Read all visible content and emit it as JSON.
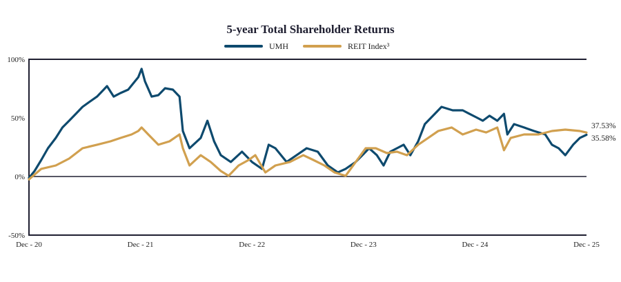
{
  "chart_data": {
    "type": "line",
    "title": "5-year Total Shareholder Returns",
    "xlabel": "",
    "ylabel": "",
    "x_unit": "years since Dec-20",
    "xlim": [
      0,
      5
    ],
    "ylim": [
      -50,
      100
    ],
    "y_ticks": [
      {
        "value": 100,
        "label": "100%"
      },
      {
        "value": 50,
        "label": "50%"
      },
      {
        "value": 0,
        "label": "0%"
      },
      {
        "value": -50,
        "label": "-50%"
      }
    ],
    "x_ticks": [
      {
        "value": 0,
        "label": "Dec - 20"
      },
      {
        "value": 1,
        "label": "Dec - 21"
      },
      {
        "value": 2,
        "label": "Dec - 22"
      },
      {
        "value": 3,
        "label": "Dec - 23"
      },
      {
        "value": 4,
        "label": "Dec - 24"
      },
      {
        "value": 5,
        "label": "Dec - 25"
      }
    ],
    "grid": false,
    "legend_position": "top-center",
    "series": [
      {
        "name": "UMH",
        "color": "#0e4a6e",
        "end_label": "35.58%",
        "points": [
          [
            0,
            -1.2
          ],
          [
            0.05,
            4.7
          ],
          [
            0.11,
            14.1
          ],
          [
            0.17,
            24.1
          ],
          [
            0.24,
            32.9
          ],
          [
            0.3,
            41.8
          ],
          [
            0.36,
            47.6
          ],
          [
            0.42,
            53.5
          ],
          [
            0.48,
            59.4
          ],
          [
            0.54,
            63.5
          ],
          [
            0.61,
            68.2
          ],
          [
            0.67,
            74.1
          ],
          [
            0.7,
            77.1
          ],
          [
            0.76,
            68.2
          ],
          [
            0.82,
            71.2
          ],
          [
            0.89,
            74.1
          ],
          [
            0.95,
            81.2
          ],
          [
            0.98,
            84.7
          ],
          [
            1.01,
            91.8
          ],
          [
            1.04,
            81.2
          ],
          [
            1.1,
            68.2
          ],
          [
            1.16,
            69.4
          ],
          [
            1.22,
            75.3
          ],
          [
            1.29,
            74.1
          ],
          [
            1.35,
            68.2
          ],
          [
            1.38,
            38.8
          ],
          [
            1.44,
            24.1
          ],
          [
            1.54,
            32.9
          ],
          [
            1.6,
            47.6
          ],
          [
            1.66,
            30
          ],
          [
            1.72,
            18.2
          ],
          [
            1.81,
            12.4
          ],
          [
            1.91,
            21.2
          ],
          [
            2.0,
            12.4
          ],
          [
            2.09,
            6.5
          ],
          [
            2.15,
            27.1
          ],
          [
            2.21,
            24.1
          ],
          [
            2.31,
            12.4
          ],
          [
            2.4,
            18.2
          ],
          [
            2.49,
            24.1
          ],
          [
            2.59,
            21.2
          ],
          [
            2.68,
            9.4
          ],
          [
            2.77,
            3.5
          ],
          [
            2.84,
            6.5
          ],
          [
            2.93,
            12.4
          ],
          [
            2.99,
            18.2
          ],
          [
            3.05,
            24.1
          ],
          [
            3.12,
            18.2
          ],
          [
            3.18,
            9.4
          ],
          [
            3.24,
            21.2
          ],
          [
            3.3,
            24.1
          ],
          [
            3.36,
            27.1
          ],
          [
            3.42,
            18.2
          ],
          [
            3.49,
            30
          ],
          [
            3.55,
            44.7
          ],
          [
            3.61,
            50.6
          ],
          [
            3.7,
            59.4
          ],
          [
            3.8,
            56.5
          ],
          [
            3.89,
            56.5
          ],
          [
            3.95,
            53.5
          ],
          [
            4.01,
            50.6
          ],
          [
            4.07,
            47.6
          ],
          [
            4.13,
            51.8
          ],
          [
            4.2,
            47.6
          ],
          [
            4.26,
            53.5
          ],
          [
            4.29,
            35.9
          ],
          [
            4.35,
            44.7
          ],
          [
            4.44,
            41.8
          ],
          [
            4.53,
            38.8
          ],
          [
            4.63,
            35.9
          ],
          [
            4.69,
            27.1
          ],
          [
            4.75,
            24.1
          ],
          [
            4.81,
            18.2
          ],
          [
            4.88,
            27.1
          ],
          [
            4.94,
            32.9
          ],
          [
            5.0,
            35.58
          ]
        ]
      },
      {
        "name": "REIT Index³",
        "color": "#d1a04f",
        "end_label": "37.53%",
        "points": [
          [
            0,
            -2.4
          ],
          [
            0.11,
            6.5
          ],
          [
            0.24,
            9.4
          ],
          [
            0.36,
            15.3
          ],
          [
            0.48,
            24.1
          ],
          [
            0.61,
            27.1
          ],
          [
            0.73,
            30
          ],
          [
            0.82,
            32.9
          ],
          [
            0.92,
            35.9
          ],
          [
            0.98,
            38.8
          ],
          [
            1.01,
            41.8
          ],
          [
            1.07,
            35.9
          ],
          [
            1.16,
            27.1
          ],
          [
            1.26,
            30
          ],
          [
            1.35,
            35.9
          ],
          [
            1.38,
            24.1
          ],
          [
            1.44,
            9.4
          ],
          [
            1.54,
            18.2
          ],
          [
            1.63,
            12.4
          ],
          [
            1.72,
            4.7
          ],
          [
            1.79,
            0.6
          ],
          [
            1.88,
            9.4
          ],
          [
            1.97,
            14.1
          ],
          [
            2.03,
            18.2
          ],
          [
            2.12,
            3.5
          ],
          [
            2.21,
            9.4
          ],
          [
            2.34,
            12.4
          ],
          [
            2.46,
            18.2
          ],
          [
            2.55,
            14.1
          ],
          [
            2.65,
            9.4
          ],
          [
            2.74,
            3.5
          ],
          [
            2.84,
            0.6
          ],
          [
            2.93,
            12.4
          ],
          [
            3.02,
            24.1
          ],
          [
            3.11,
            24.1
          ],
          [
            3.21,
            20
          ],
          [
            3.3,
            21.2
          ],
          [
            3.39,
            18.2
          ],
          [
            3.49,
            27.1
          ],
          [
            3.58,
            32.9
          ],
          [
            3.67,
            38.8
          ],
          [
            3.79,
            41.8
          ],
          [
            3.89,
            35.9
          ],
          [
            4.01,
            40
          ],
          [
            4.1,
            37.6
          ],
          [
            4.2,
            41.8
          ],
          [
            4.26,
            22.4
          ],
          [
            4.32,
            32.9
          ],
          [
            4.44,
            35.9
          ],
          [
            4.57,
            35.9
          ],
          [
            4.69,
            38.8
          ],
          [
            4.81,
            40
          ],
          [
            4.94,
            38.8
          ],
          [
            5.0,
            37.53
          ]
        ]
      }
    ]
  }
}
